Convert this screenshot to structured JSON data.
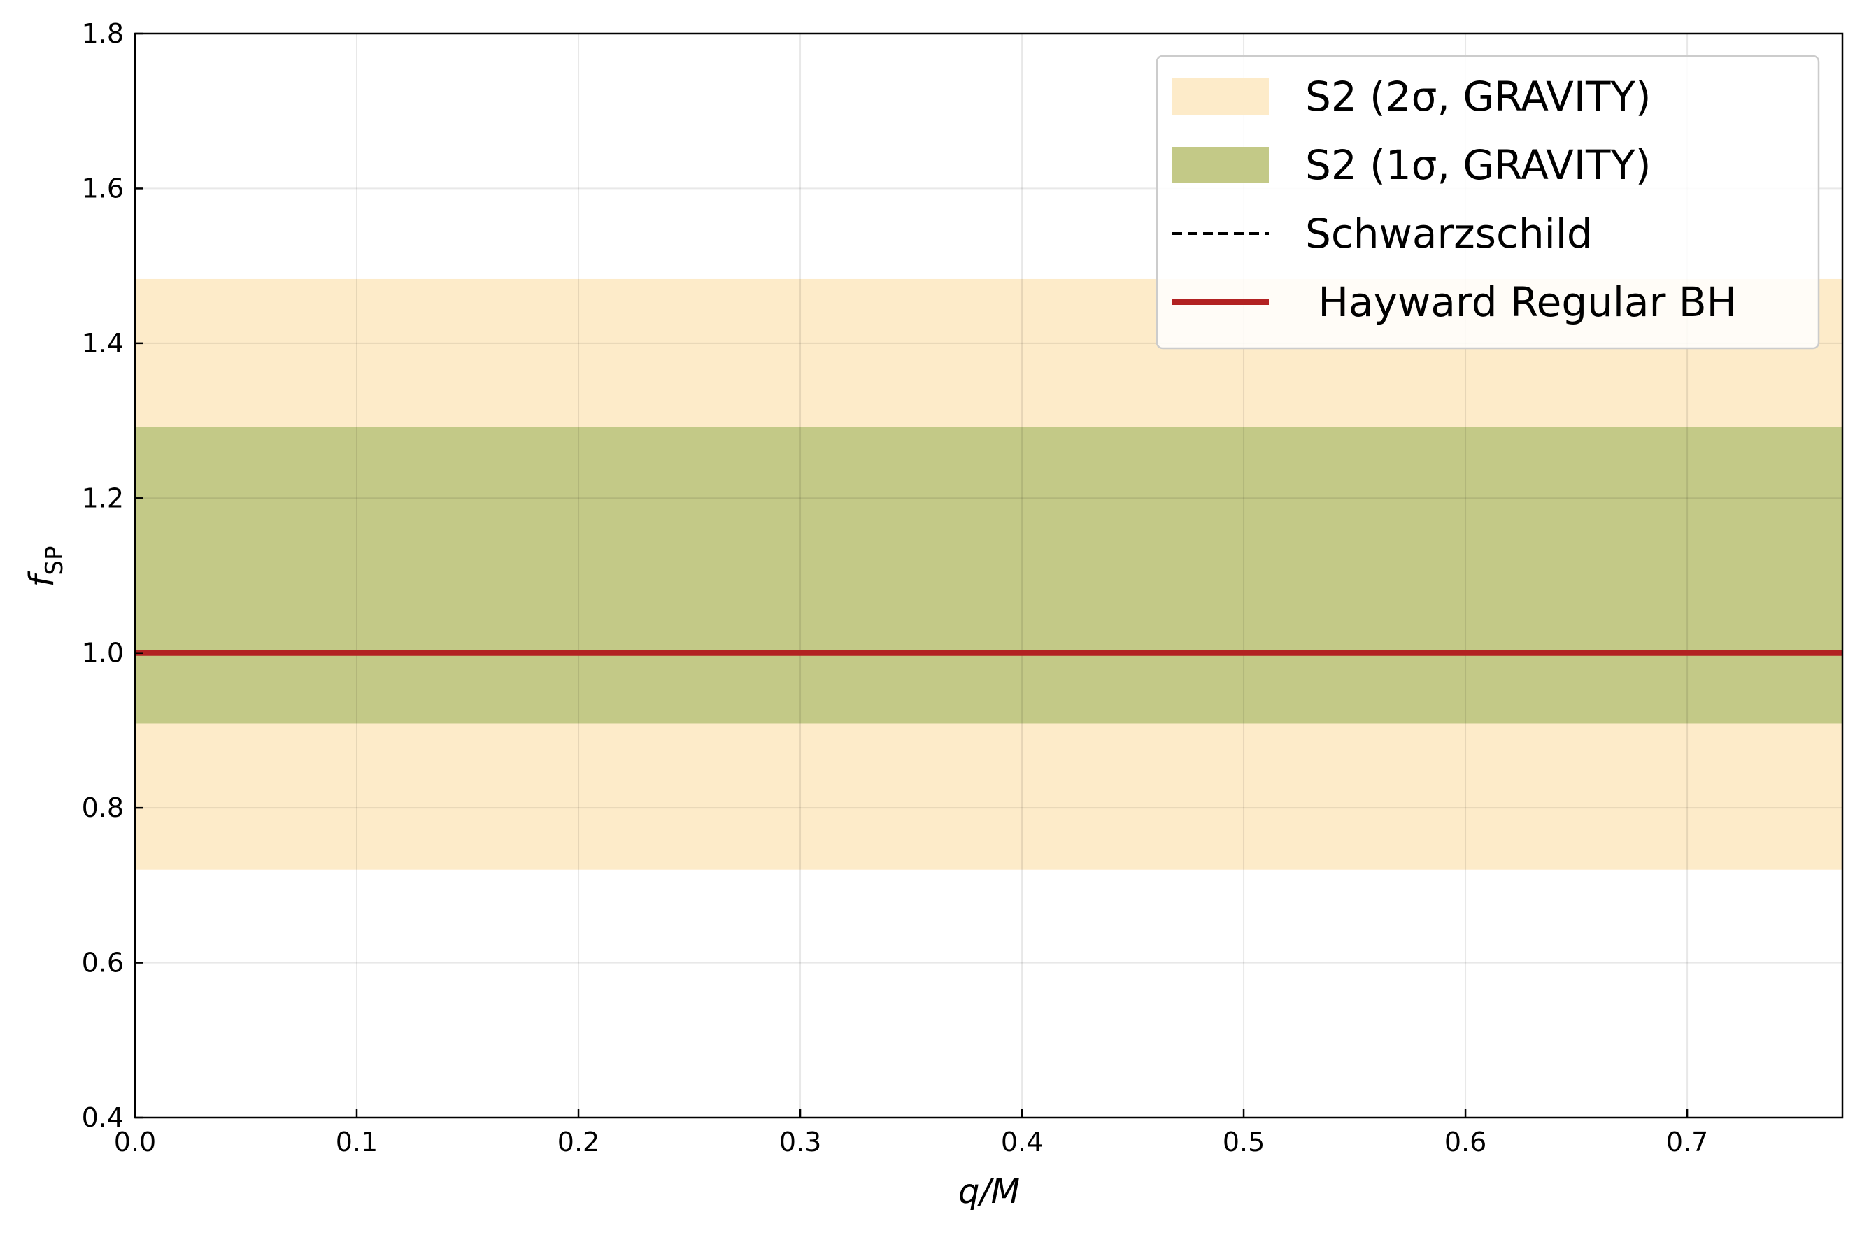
{
  "chart_data": {
    "type": "area",
    "xlabel": "q/M",
    "ylabel": "f",
    "ylabel_sub": "SP",
    "xlim": [
      0.0,
      0.77
    ],
    "ylim": [
      0.4,
      1.8
    ],
    "xticks": [
      0.0,
      0.1,
      0.2,
      0.3,
      0.4,
      0.5,
      0.6,
      0.7
    ],
    "yticks": [
      0.4,
      0.6,
      0.8,
      1.0,
      1.2,
      1.4,
      1.6,
      1.8
    ],
    "xtick_labels": [
      "0.0",
      "0.1",
      "0.2",
      "0.3",
      "0.4",
      "0.5",
      "0.6",
      "0.7"
    ],
    "ytick_labels": [
      "0.4",
      "0.6",
      "0.8",
      "1.0",
      "1.2",
      "1.4",
      "1.6",
      "1.8"
    ],
    "grid": true,
    "legend_position": "top-right",
    "series": [
      {
        "name": "S2 (2σ, GRAVITY)",
        "kind": "band",
        "y_low": 0.72,
        "y_high": 1.483,
        "color": "#fdebc9"
      },
      {
        "name": "S2 (1σ, GRAVITY)",
        "kind": "band",
        "y_low": 0.909,
        "y_high": 1.292,
        "color": "#c3c987"
      },
      {
        "name": "Schwarzschild",
        "kind": "dashed-line",
        "x": [
          0.0,
          0.77
        ],
        "y": [
          1.0,
          1.0
        ],
        "color": "#000000"
      },
      {
        "name": " Hayward Regular BH",
        "kind": "line",
        "x": [
          0.0,
          0.77
        ],
        "y": [
          1.0,
          1.0
        ],
        "color": "#b22222"
      }
    ]
  }
}
